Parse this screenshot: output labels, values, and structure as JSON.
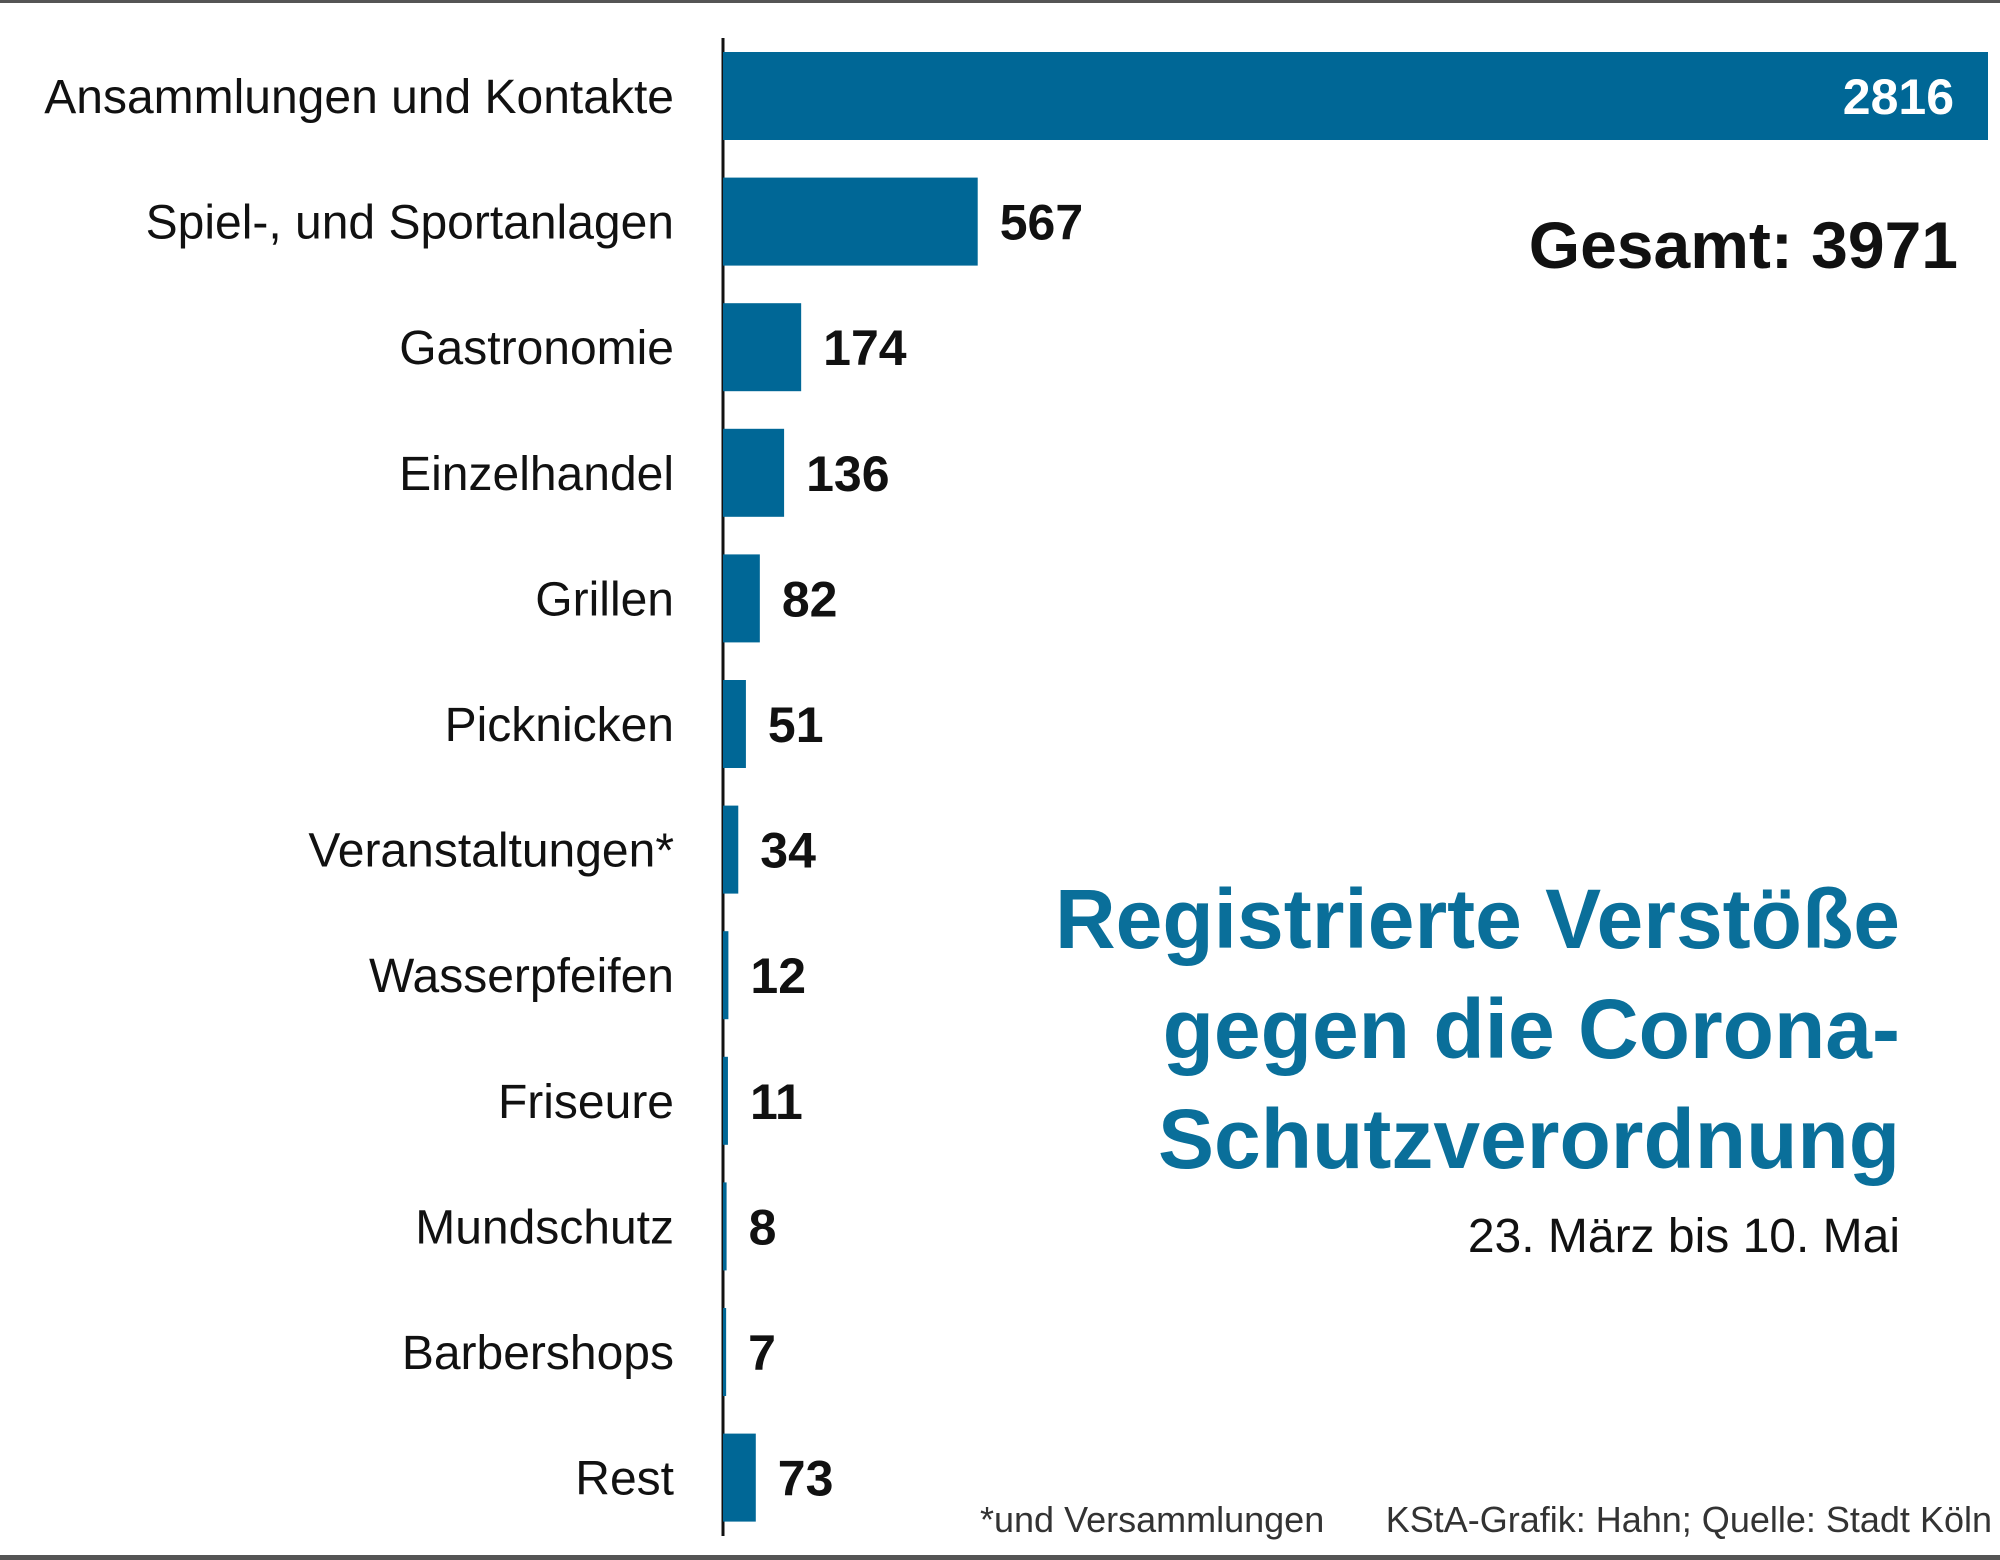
{
  "colors": {
    "bar": "#006796",
    "title": "#0a6f9a",
    "text": "#111111",
    "frame": "#555555"
  },
  "chart_data": {
    "type": "bar",
    "orientation": "horizontal",
    "categories": [
      "Ansammlungen und Kontakte",
      "Spiel-, und Sportanlagen",
      "Gastronomie",
      "Einzelhandel",
      "Grillen",
      "Picknicken",
      "Veranstaltungen*",
      "Wasserpfeifen",
      "Friseure",
      "Mundschutz",
      "Barbershops",
      "Rest"
    ],
    "values": [
      2816,
      567,
      174,
      136,
      82,
      51,
      34,
      12,
      11,
      8,
      7,
      73
    ],
    "value_labels": [
      "2816",
      "567",
      "174",
      "136",
      "82",
      "51",
      "34",
      "12",
      "11",
      "8",
      "7",
      "73"
    ],
    "xlim": [
      0,
      2816
    ],
    "grid": false,
    "title_lines": [
      "Registrierte Verstöße",
      "gegen die Corona-",
      "Schutzverordnung"
    ],
    "subtitle": "23. März bis 10. Mai",
    "total_label": "Gesamt: 3971",
    "footnote": "*und Versammlungen",
    "source": "KStA-Grafik: Hahn; Quelle: Stadt Köln"
  }
}
